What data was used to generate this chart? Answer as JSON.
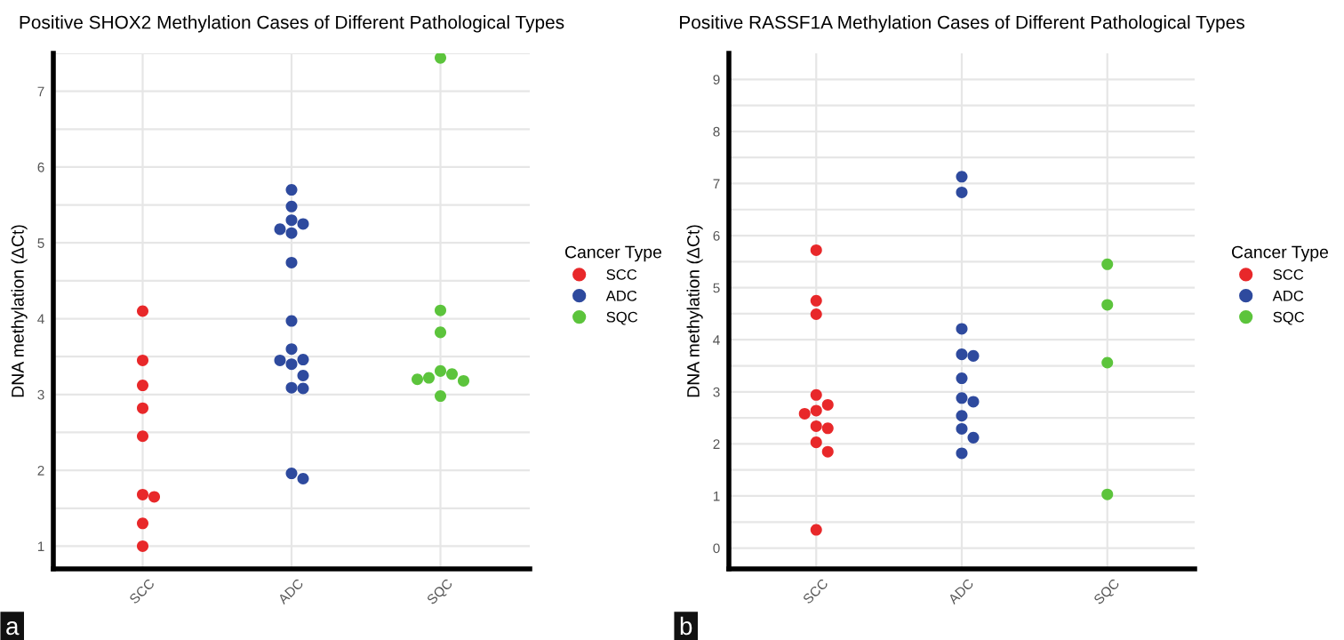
{
  "chart_data": [
    {
      "type": "scatter",
      "title": "Positive SHOX2 Methylation Cases of Different Pathological Types",
      "ylabel": "DNA methylation (ΔCt)",
      "legend_title": "Cancer Type",
      "categories": [
        "SCC",
        "ADC",
        "SQC"
      ],
      "series": [
        {
          "name": "SCC",
          "color": "#e8282a",
          "x": [
            "SCC",
            "SCC",
            "SCC",
            "SCC",
            "SCC",
            "SCC",
            "SCC",
            "SCC",
            "SCC"
          ],
          "values": [
            4.1,
            3.45,
            3.12,
            2.82,
            2.45,
            1.68,
            1.65,
            1.3,
            1.0
          ]
        },
        {
          "name": "ADC",
          "color": "#2e4a9e",
          "x": [
            "ADC",
            "ADC",
            "ADC",
            "ADC",
            "ADC",
            "ADC",
            "ADC",
            "ADC",
            "ADC",
            "ADC",
            "ADC",
            "ADC",
            "ADC",
            "ADC",
            "ADC",
            "ADC",
            "ADC"
          ],
          "values": [
            5.7,
            5.48,
            5.3,
            5.25,
            5.18,
            5.13,
            4.74,
            3.97,
            3.6,
            3.46,
            3.4,
            3.45,
            3.25,
            3.09,
            3.08,
            1.96,
            1.89
          ]
        },
        {
          "name": "SQC",
          "color": "#5cc43c",
          "x": [
            "SQC",
            "SQC",
            "SQC",
            "SQC",
            "SQC",
            "SQC",
            "SQC",
            "SQC",
            "SQC"
          ],
          "values": [
            7.44,
            4.11,
            3.82,
            3.31,
            3.27,
            3.22,
            3.18,
            3.2,
            2.98
          ]
        }
      ],
      "ylim": [
        0.7,
        7.5
      ],
      "yticks": [
        1,
        {
          "value": 1.5,
          "label": null
        },
        2,
        {
          "value": 2.5,
          "label": null
        },
        3,
        {
          "value": 3.5,
          "label": null
        },
        4,
        {
          "value": 4.5,
          "label": null
        },
        5,
        {
          "value": 5.5,
          "label": null
        },
        6,
        {
          "value": 6.5,
          "label": null
        },
        7,
        {
          "value": 7.5,
          "label": null
        }
      ],
      "grid": true,
      "legend": "right",
      "marker": "circle",
      "annotations": [
        "a"
      ]
    },
    {
      "type": "scatter",
      "title": "Positive RASSF1A Methylation Cases of Different Pathological Types",
      "ylabel": "DNA methylation (ΔCt)",
      "legend_title": "Cancer Type",
      "categories": [
        "SCC",
        "ADC",
        "SQC"
      ],
      "series": [
        {
          "name": "SCC",
          "color": "#e8282a",
          "x": [
            "SCC",
            "SCC",
            "SCC",
            "SCC",
            "SCC",
            "SCC",
            "SCC",
            "SCC",
            "SCC",
            "SCC",
            "SCC",
            "SCC"
          ],
          "values": [
            5.72,
            4.75,
            4.49,
            2.94,
            2.75,
            2.64,
            2.58,
            2.34,
            2.3,
            2.03,
            1.85,
            0.35
          ]
        },
        {
          "name": "ADC",
          "color": "#2e4a9e",
          "x": [
            "ADC",
            "ADC",
            "ADC",
            "ADC",
            "ADC",
            "ADC",
            "ADC",
            "ADC",
            "ADC",
            "ADC",
            "ADC",
            "ADC"
          ],
          "values": [
            7.13,
            6.83,
            4.21,
            3.72,
            3.69,
            3.26,
            2.88,
            2.81,
            2.54,
            2.29,
            2.12,
            1.82
          ]
        },
        {
          "name": "SQC",
          "color": "#5cc43c",
          "x": [
            "SQC",
            "SQC",
            "SQC",
            "SQC"
          ],
          "values": [
            5.45,
            4.67,
            3.56,
            1.03
          ]
        }
      ],
      "ylim": [
        -0.4,
        9.5
      ],
      "yticks": [
        0,
        {
          "value": 0.5,
          "label": null
        },
        1,
        {
          "value": 1.5,
          "label": null
        },
        2,
        {
          "value": 2.5,
          "label": null
        },
        3,
        {
          "value": 3.5,
          "label": null
        },
        4,
        {
          "value": 4.5,
          "label": null
        },
        5,
        {
          "value": 5.5,
          "label": null
        },
        6,
        {
          "value": 6.5,
          "label": null
        },
        7,
        {
          "value": 7.5,
          "label": null
        },
        8,
        {
          "value": 8.5,
          "label": null
        },
        9
      ],
      "grid": true,
      "legend": "right",
      "marker": "circle",
      "annotations": [
        "b"
      ]
    }
  ]
}
